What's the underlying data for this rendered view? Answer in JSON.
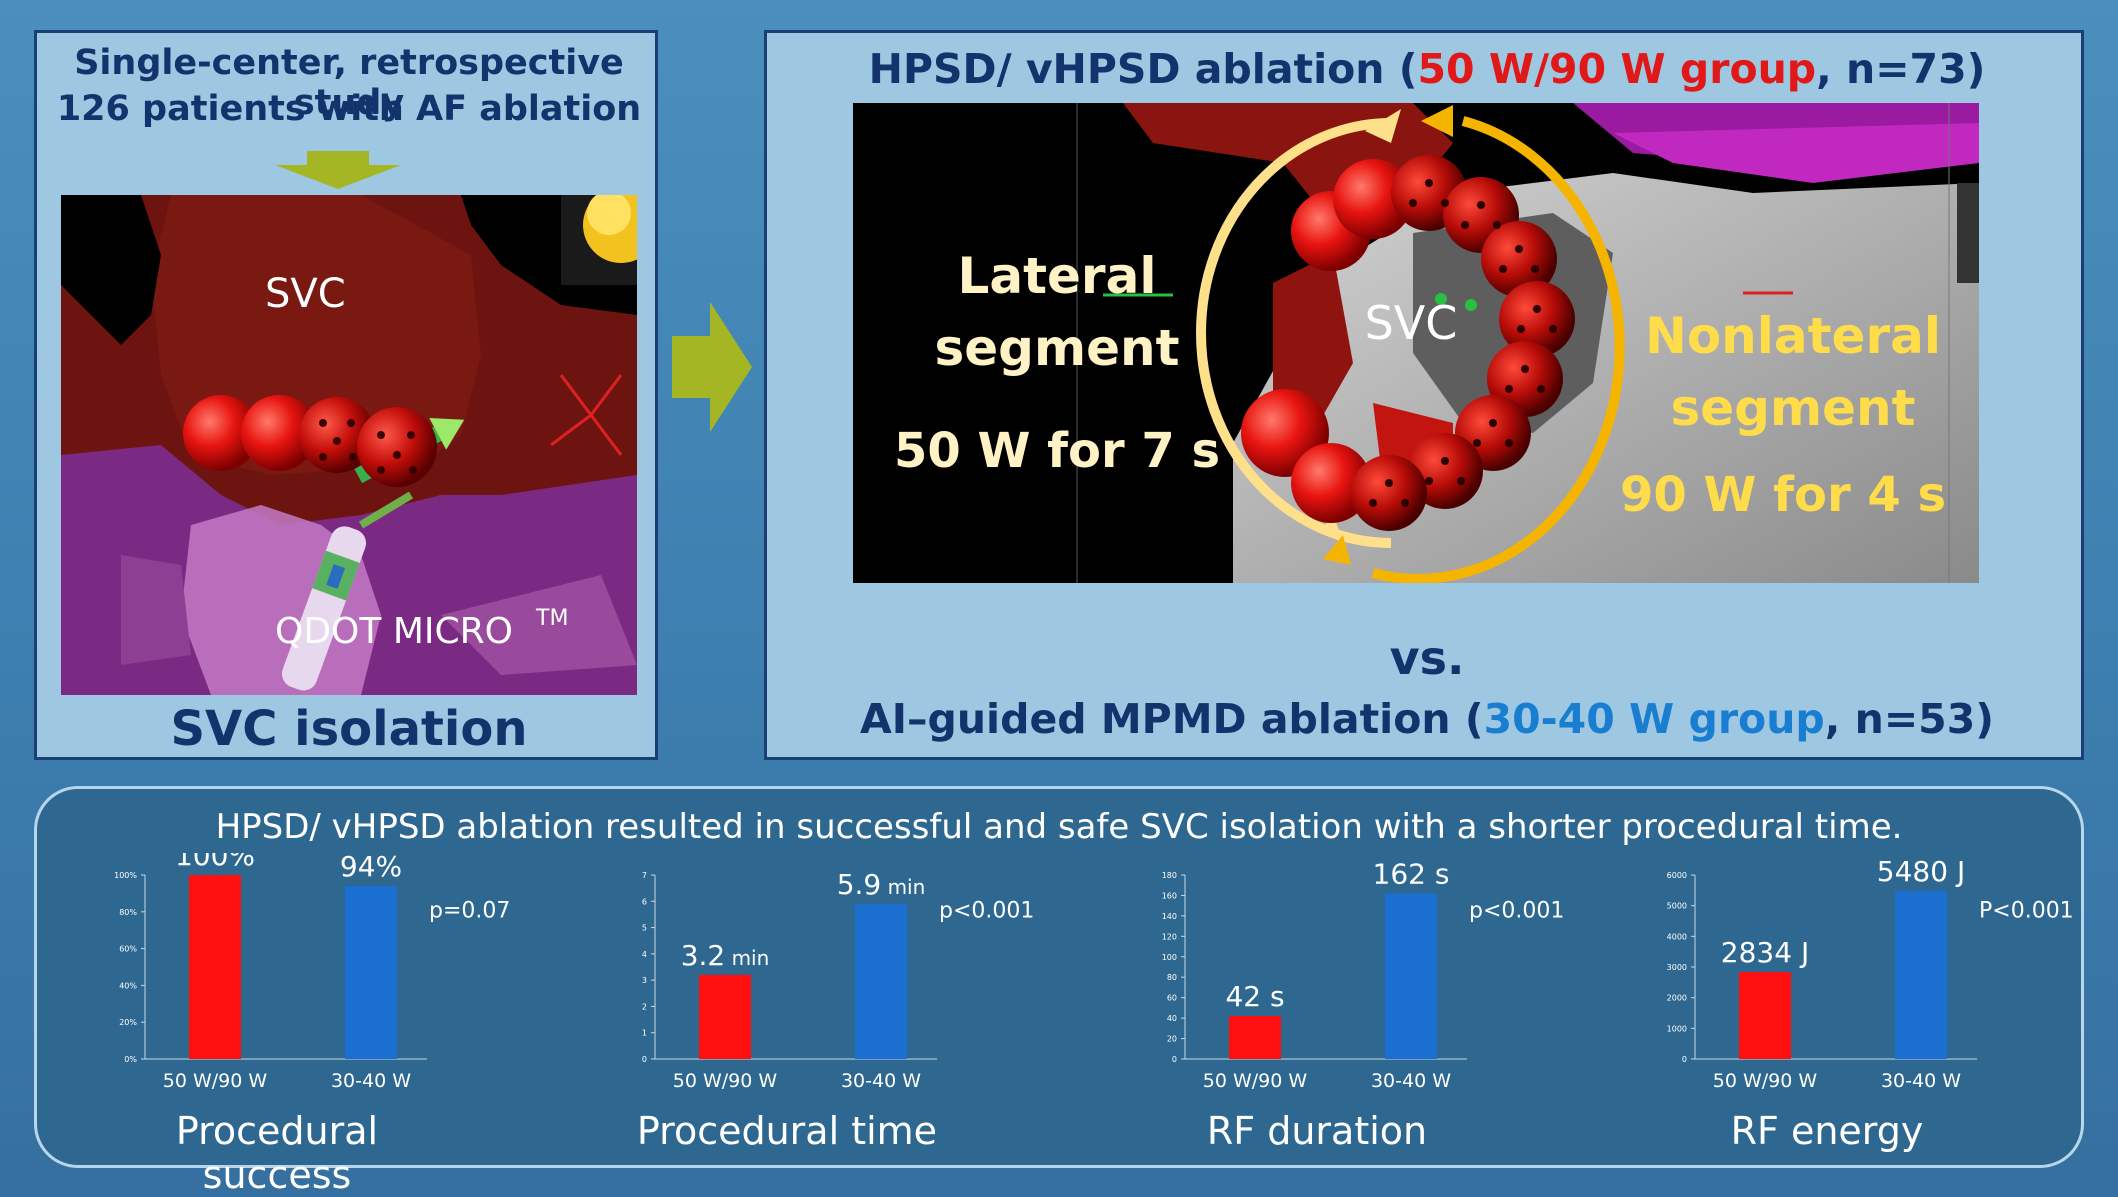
{
  "left_panel": {
    "study_line_1": "Single-center, retrospective study",
    "study_line_2": "126 patients with AF ablation",
    "image_labels": {
      "svc": "SVC",
      "catheter": "QDOT MICRO",
      "catheter_tm": "TM"
    },
    "title": "SVC isolation"
  },
  "right_panel": {
    "title": {
      "prefix": "HPSD/ vHPSD ablation (",
      "group_highlight": "50 W/90 W group",
      "suffix": ", n=73)"
    },
    "map_labels": {
      "lateral_line_1": "Lateral",
      "lateral_line_2": "segment",
      "lateral_setting": "50 W for 7 s",
      "svc": "SVC",
      "nonlateral_line_1": "Nonlateral",
      "nonlateral_line_2": "segment",
      "nonlateral_setting": "90 W for 4 s"
    },
    "vs": "vs.",
    "comparison": {
      "prefix": "AI–guided MPMD ablation (",
      "group_highlight": "30-40 W group",
      "suffix": ", n=53)"
    }
  },
  "bottom_panel": {
    "conclusion": "HPSD/ vHPSD ablation resulted in successful and safe SVC isolation with a shorter procedural time."
  },
  "colors": {
    "hpsd_bar": "#ff1010",
    "mpmd_bar": "#1a6fd1",
    "title_navy": "#12336b",
    "highlight_red": "#e01818",
    "highlight_blue": "#1a7ed0",
    "arrow_green": "#a4b624"
  },
  "chart_data": [
    {
      "type": "bar",
      "title": "Procedural success",
      "categories": [
        "50 W/90 W",
        "30-40 W"
      ],
      "values": [
        100,
        94
      ],
      "value_labels": [
        {
          "value": "100%",
          "unit": ""
        },
        {
          "value": "94%",
          "unit": ""
        }
      ],
      "ylim": [
        0,
        100
      ],
      "yticks": [
        "0%",
        "20%",
        "40%",
        "60%",
        "80%",
        "100%"
      ],
      "p_value": "p=0.07"
    },
    {
      "type": "bar",
      "title": "Procedural time",
      "categories": [
        "50 W/90 W",
        "30-40 W"
      ],
      "values": [
        3.2,
        5.9
      ],
      "value_labels": [
        {
          "value": "3.2",
          "unit": "min"
        },
        {
          "value": "5.9",
          "unit": "min"
        }
      ],
      "ylim": [
        0,
        7
      ],
      "yticks": [
        "0",
        "1",
        "2",
        "3",
        "4",
        "5",
        "6",
        "7"
      ],
      "p_value": "p<0.001"
    },
    {
      "type": "bar",
      "title": "RF duration",
      "categories": [
        "50 W/90 W",
        "30-40 W"
      ],
      "values": [
        42,
        162
      ],
      "value_labels": [
        {
          "value": "42 s",
          "unit": ""
        },
        {
          "value": "162 s",
          "unit": ""
        }
      ],
      "ylim": [
        0,
        180
      ],
      "yticks": [
        "0",
        "20",
        "40",
        "60",
        "80",
        "100",
        "120",
        "140",
        "160",
        "180"
      ],
      "p_value": "p<0.001"
    },
    {
      "type": "bar",
      "title": "RF energy",
      "categories": [
        "50 W/90 W",
        "30-40 W"
      ],
      "values": [
        2834,
        5480
      ],
      "value_labels": [
        {
          "value": "2834 J",
          "unit": ""
        },
        {
          "value": "5480 J",
          "unit": ""
        }
      ],
      "ylim": [
        0,
        6000
      ],
      "yticks": [
        "0",
        "1000",
        "2000",
        "3000",
        "4000",
        "5000",
        "6000"
      ],
      "p_value": "P<0.001"
    }
  ]
}
